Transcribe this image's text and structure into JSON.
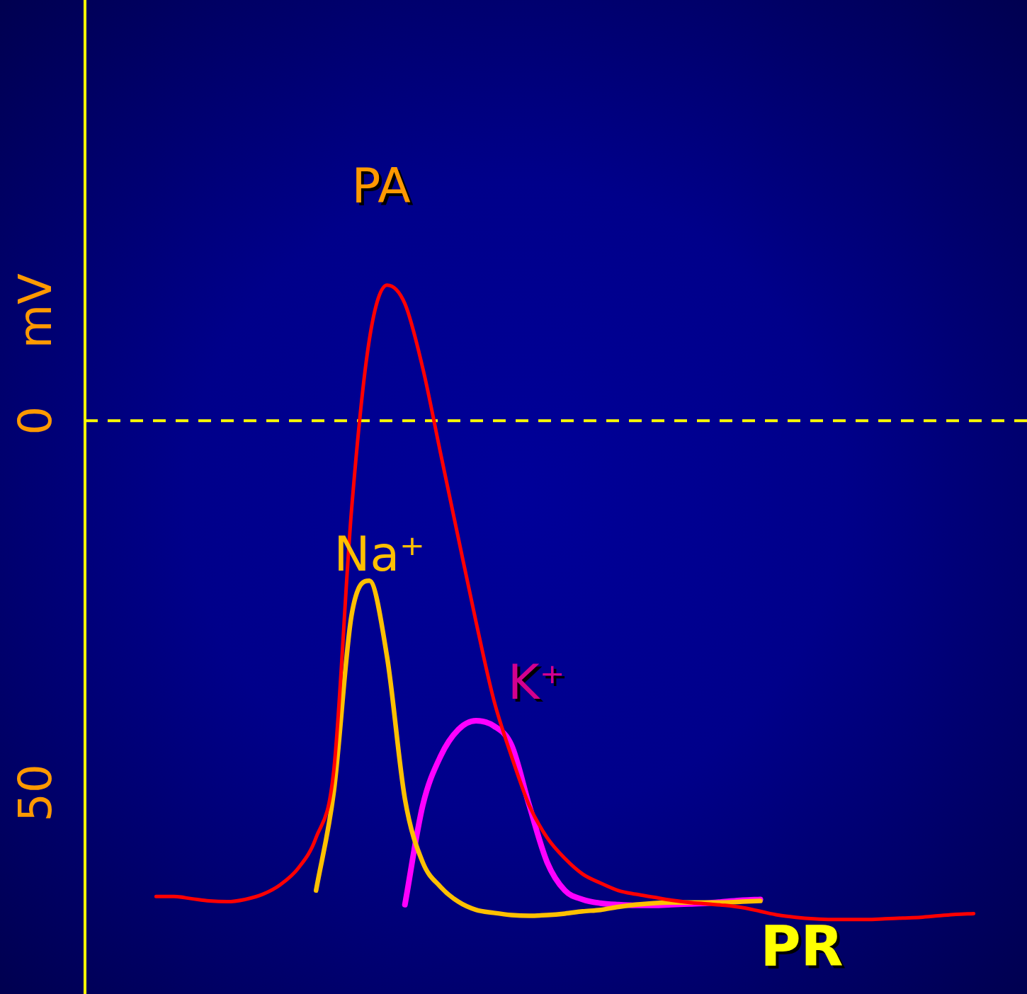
{
  "chart_data": {
    "type": "line",
    "ylabel": "mV",
    "ylim": [
      -77,
      56.5
    ],
    "yticks": [
      {
        "value": 0,
        "label": "0"
      },
      {
        "value": -50,
        "label": "50"
      }
    ],
    "grid": false,
    "legend": false,
    "marker": "none",
    "line_style": "solid",
    "categories": [
      null,
      null,
      null,
      null,
      null,
      null,
      null,
      null,
      null,
      null,
      null,
      null,
      null,
      null,
      null,
      null,
      null,
      null,
      null,
      null,
      null,
      null,
      null,
      null,
      null,
      null,
      null,
      null,
      null,
      null,
      null,
      null,
      null,
      null,
      null,
      null,
      null,
      null,
      null,
      null,
      null,
      null,
      null,
      null,
      null,
      null,
      null,
      null,
      null,
      null,
      null,
      null,
      null,
      null
    ],
    "series": [
      {
        "name": "PA",
        "color": "#ff0000",
        "values": [
          null,
          null,
          null,
          null,
          -63.9,
          -63.9,
          -64.2,
          -64.5,
          -64.6,
          -64.3,
          -63.6,
          -62.3,
          -60.1,
          -56.0,
          -46.9,
          -11.9,
          10.9,
          18.2,
          15.7,
          7.1,
          -4.3,
          -15.7,
          -27.0,
          -37.5,
          -45.1,
          -51.7,
          -56.0,
          -58.8,
          -60.9,
          -62.1,
          -63.1,
          -63.6,
          -64.0,
          -64.4,
          -64.7,
          -64.9,
          -65.1,
          -65.4,
          -65.9,
          -66.4,
          -66.7,
          -66.9,
          -67.0,
          -67.0,
          -67.0,
          -66.9,
          -66.8,
          -66.7,
          -66.5,
          -66.3,
          -66.2,
          null,
          null,
          null
        ]
      },
      {
        "name": "Na⁺",
        "color": "#ffc000",
        "values": [
          null,
          null,
          null,
          null,
          null,
          null,
          null,
          null,
          null,
          null,
          null,
          null,
          null,
          -63.1,
          -49.8,
          -26.1,
          -21.5,
          -31.8,
          -50.8,
          -59.3,
          -62.6,
          -64.6,
          -65.7,
          -66.1,
          -66.4,
          -66.5,
          -66.4,
          -66.2,
          -65.9,
          -65.7,
          -65.3,
          -65.0,
          -64.8,
          -64.7,
          -64.7,
          -64.7,
          -64.7,
          -64.6,
          -64.5,
          null,
          null,
          null,
          null,
          null,
          null,
          null,
          null,
          null,
          null,
          null,
          null,
          null,
          null,
          null
        ]
      },
      {
        "name": "K⁺",
        "color": "#ff00ff",
        "values": [
          null,
          null,
          null,
          null,
          null,
          null,
          null,
          null,
          null,
          null,
          null,
          null,
          null,
          null,
          null,
          null,
          null,
          null,
          -65.0,
          -51.7,
          -45.1,
          -41.5,
          -40.3,
          -41.0,
          -43.6,
          -51.7,
          -59.3,
          -63.1,
          -64.3,
          -64.8,
          -65.0,
          -65.1,
          -65.1,
          -65.0,
          -64.9,
          -64.8,
          -64.6,
          -64.4,
          -64.3,
          null,
          null,
          null,
          null,
          null,
          null,
          null,
          null,
          null,
          null,
          null,
          null,
          null,
          null,
          null
        ]
      }
    ],
    "ref_lines": [
      {
        "axis": "y",
        "value": 0,
        "color": "#ffff00",
        "line_style": "dashed"
      }
    ],
    "annotations": [
      "PR"
    ]
  }
}
